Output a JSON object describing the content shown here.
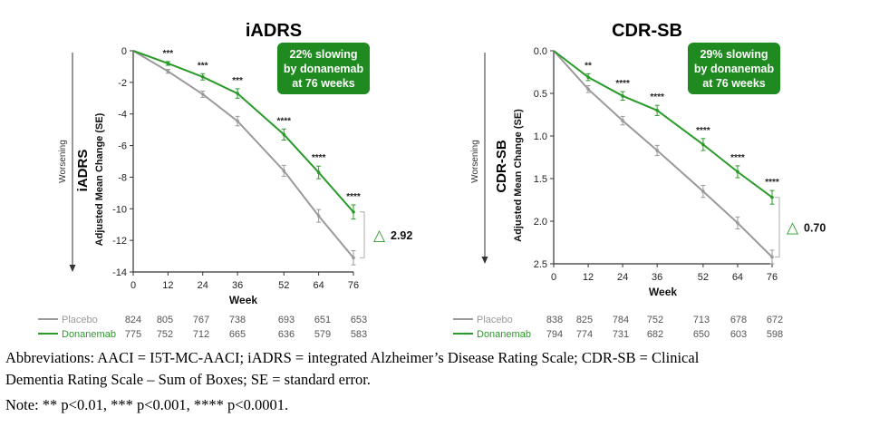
{
  "colors": {
    "placebo": "#9a9a9a",
    "donanemab": "#2a9b2a",
    "callout_bg": "#1f8a1f",
    "axis": "#333333"
  },
  "chart_data": [
    {
      "type": "line",
      "title": "iADRS",
      "ylabel": "Adjusted Mean Change (SE)",
      "ylabel_measure": "iADRS",
      "direction_label": "Worsening",
      "xlabel": "Week",
      "x": [
        0,
        12,
        24,
        36,
        52,
        64,
        76
      ],
      "x_ticks": [
        "0",
        "12",
        "24",
        "36",
        "52",
        "64",
        "76"
      ],
      "y_ticks": [
        "0",
        "-2",
        "-4",
        "-6",
        "-8",
        "-10",
        "-12",
        "-14"
      ],
      "ylim": [
        -14,
        0
      ],
      "inverted": false,
      "series": [
        {
          "name": "Placebo",
          "color": "#9a9a9a",
          "values": [
            0,
            -1.3,
            -2.75,
            -4.45,
            -7.6,
            -10.45,
            -13.1
          ],
          "se": [
            0,
            0.12,
            0.2,
            0.3,
            0.35,
            0.4,
            0.45
          ],
          "n_at_risk": [
            "824",
            "805",
            "767",
            "738",
            "693",
            "651",
            "653"
          ]
        },
        {
          "name": "Donanemab",
          "color": "#2a9b2a",
          "values": [
            0,
            -0.8,
            -1.65,
            -2.7,
            -5.3,
            -7.7,
            -10.2
          ],
          "se": [
            0,
            0.12,
            0.2,
            0.3,
            0.35,
            0.4,
            0.45
          ],
          "n_at_risk": [
            "775",
            "752",
            "712",
            "665",
            "636",
            "579",
            "583"
          ]
        }
      ],
      "significance": [
        "",
        "***",
        "***",
        "***",
        "****",
        "****",
        "****"
      ],
      "callout": {
        "line1": "22% slowing",
        "line2": "by donanemab",
        "line3": "at 76 weeks"
      },
      "difference": {
        "symbol": "△",
        "value": "2.92"
      }
    },
    {
      "type": "line",
      "title": "CDR-SB",
      "ylabel": "Adjusted Mean Change (SE)",
      "ylabel_measure": "CDR-SB",
      "direction_label": "Worsening",
      "xlabel": "Week",
      "x": [
        0,
        12,
        24,
        36,
        52,
        64,
        76
      ],
      "x_ticks": [
        "0",
        "12",
        "24",
        "36",
        "52",
        "64",
        "76"
      ],
      "y_ticks": [
        "0.0",
        "0.5",
        "1.0",
        "1.5",
        "2.0",
        "2.5"
      ],
      "ylim": [
        0,
        2.5
      ],
      "inverted": true,
      "series": [
        {
          "name": "Placebo",
          "color": "#9a9a9a",
          "values": [
            0,
            0.45,
            0.82,
            1.17,
            1.65,
            2.02,
            2.42
          ],
          "se": [
            0,
            0.04,
            0.05,
            0.06,
            0.07,
            0.07,
            0.08
          ],
          "n_at_risk": [
            "838",
            "825",
            "784",
            "752",
            "713",
            "678",
            "672"
          ]
        },
        {
          "name": "Donanemab",
          "color": "#2a9b2a",
          "values": [
            0,
            0.31,
            0.53,
            0.7,
            1.1,
            1.42,
            1.72
          ],
          "se": [
            0,
            0.04,
            0.05,
            0.06,
            0.07,
            0.07,
            0.08
          ],
          "n_at_risk": [
            "794",
            "774",
            "731",
            "682",
            "650",
            "603",
            "598"
          ]
        }
      ],
      "significance": [
        "",
        "**",
        "****",
        "****",
        "****",
        "****",
        "****"
      ],
      "callout": {
        "line1": "29% slowing",
        "line2": "by donanemab",
        "line3": "at 76 weeks"
      },
      "difference": {
        "symbol": "△",
        "value": "0.70"
      }
    }
  ],
  "footnotes": {
    "abbrev_line1": "Abbreviations: AACI = I5T-MC-AACI; iADRS = integrated Alzheimer’s Disease Rating Scale; CDR-SB = Clinical",
    "abbrev_line2": "Dementia Rating Scale – Sum of Boxes; SE = standard error.",
    "note": "Note: ** p<0.01, *** p<0.001, **** p<0.0001."
  }
}
